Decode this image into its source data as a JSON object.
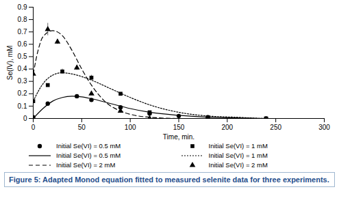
{
  "chart_data": {
    "type": "line",
    "caption": "Figure 5: Adapted Monod equation fitted to measured selenite data for three experiments.",
    "x_label": "Time, min.",
    "y_label": "Se(IV), mM",
    "xlim": [
      0,
      300
    ],
    "xticks": [
      0,
      50,
      100,
      150,
      200,
      250,
      300
    ],
    "ylim": [
      0,
      0.9
    ],
    "yticks": [
      0,
      0.1,
      0.2,
      0.3,
      0.4,
      0.5,
      0.6,
      0.7,
      0.8,
      0.9
    ],
    "grid": false,
    "series": [
      {
        "name": "Initial Se(VI) = 0.5 mM",
        "type": "scatter",
        "marker": "circle",
        "color": "#000000",
        "x": [
          0,
          15,
          45,
          60,
          90,
          120,
          150,
          180,
          240
        ],
        "values": [
          0.01,
          0.12,
          0.18,
          0.15,
          0.09,
          0.04,
          0.02,
          0.01,
          0.0
        ],
        "errors": [
          null,
          0.01,
          0.01,
          null,
          null,
          null,
          null,
          null,
          null
        ]
      },
      {
        "name": "Initial Se(VI) = 1 mM",
        "type": "scatter",
        "marker": "square",
        "color": "#000000",
        "x": [
          0,
          15,
          30,
          60,
          90,
          120,
          180,
          240
        ],
        "values": [
          0.14,
          0.27,
          0.38,
          0.33,
          0.2,
          0.05,
          0.01,
          0.0
        ],
        "errors": [
          null,
          null,
          0.02,
          0.02,
          null,
          null,
          null,
          null
        ]
      },
      {
        "name": "Initial Se(VI) = 0.5 mM",
        "type": "line",
        "line_style": "solid",
        "color": "#000000",
        "x": [
          0,
          10,
          20,
          30,
          40,
          50,
          60,
          80,
          100,
          120,
          150,
          180,
          210,
          240,
          280
        ],
        "values": [
          0.0,
          0.08,
          0.14,
          0.17,
          0.18,
          0.175,
          0.16,
          0.12,
          0.08,
          0.05,
          0.025,
          0.01,
          0.005,
          0.0,
          0.0
        ]
      },
      {
        "name": "Initial Se(VI) = 1 mM",
        "type": "line",
        "line_style": "dotted",
        "color": "#000000",
        "x": [
          0,
          10,
          20,
          30,
          40,
          60,
          80,
          100,
          120,
          150,
          180,
          210,
          240,
          280
        ],
        "values": [
          0.14,
          0.28,
          0.35,
          0.37,
          0.36,
          0.31,
          0.24,
          0.17,
          0.11,
          0.05,
          0.02,
          0.01,
          0.0,
          0.0
        ]
      },
      {
        "name": "Initial Se(VI) = 2 mM",
        "type": "line",
        "line_style": "dashed",
        "color": "#000000",
        "x": [
          0,
          5,
          10,
          20,
          30,
          40,
          50,
          60,
          75,
          90,
          105,
          120,
          150,
          180
        ],
        "values": [
          0.36,
          0.55,
          0.66,
          0.71,
          0.67,
          0.55,
          0.4,
          0.27,
          0.13,
          0.06,
          0.025,
          0.01,
          0.0,
          0.0
        ]
      },
      {
        "name": "Initial Se(VI) = 2 mM",
        "type": "scatter",
        "marker": "triangle",
        "color": "#000000",
        "x": [
          0,
          15,
          25,
          45,
          60,
          90,
          120,
          180
        ],
        "values": [
          0.36,
          0.72,
          0.62,
          0.41,
          0.2,
          0.06,
          0.0,
          0.0
        ],
        "errors": [
          null,
          0.05,
          0.02,
          0.02,
          null,
          null,
          null,
          null
        ]
      }
    ]
  }
}
